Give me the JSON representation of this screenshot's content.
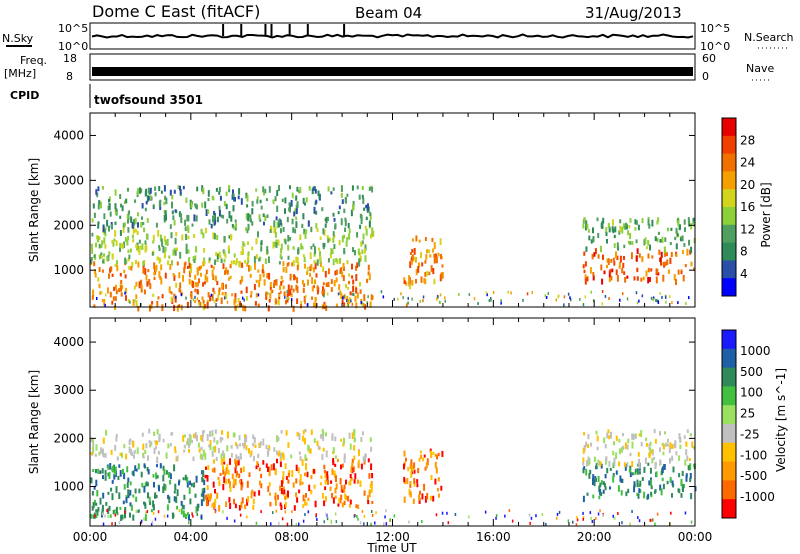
{
  "header": {
    "site": "Dome C East (fitACF)",
    "beam": "Beam 04",
    "date": "31/Aug/2013"
  },
  "panels": {
    "nsky_label": "N.Sky",
    "nsky_ticks": [
      "10^5",
      "10^0"
    ],
    "nsearch_label": "N.Search",
    "freq_label": "Freq.",
    "freq_unit": "[MHz]",
    "freq_ticks": [
      "18",
      "8"
    ],
    "nave_label": "Nave",
    "nave_ticks": [
      "60",
      "0"
    ],
    "cpid_label": "CPID",
    "cpid_value": "twofsound 3501"
  },
  "colors": {
    "power_scale": [
      "#0000ff",
      "#2a4fa8",
      "#2e8b57",
      "#4fa060",
      "#8dd03a",
      "#d2d51e",
      "#f5a000",
      "#f07000",
      "#f04000",
      "#e60000"
    ],
    "velocity_scale": [
      "#ff0000",
      "#ff6a00",
      "#ff9a00",
      "#ffc000",
      "#c0c0c0",
      "#9be060",
      "#42c040",
      "#2f8a5a",
      "#1f5fa5",
      "#1a1aff"
    ]
  },
  "chart_data": [
    {
      "type": "heatmap",
      "name": "Power",
      "ylabel": "Slant Range [km]",
      "ylim": [
        180,
        4500
      ],
      "yticks": [
        "1000",
        "2000",
        "3000",
        "4000"
      ],
      "xlim": [
        0,
        24
      ],
      "colorbar_label": "Power [dB]",
      "colorbar_ticks": [
        "4",
        "8",
        "12",
        "16",
        "20",
        "24",
        "28"
      ],
      "colorbar_range": [
        0,
        32
      ],
      "regions": [
        {
          "t0": 0.0,
          "t1": 11.2,
          "r0": 200,
          "r1": 1200,
          "value": 24
        },
        {
          "t0": 0.0,
          "t1": 11.2,
          "r0": 1200,
          "r1": 2000,
          "value": 14
        },
        {
          "t0": 0.0,
          "t1": 11.2,
          "r0": 2000,
          "r1": 2900,
          "value": 9
        },
        {
          "t0": 12.4,
          "t1": 14.0,
          "r0": 700,
          "r1": 1800,
          "value": 24
        },
        {
          "t0": 19.5,
          "t1": 24.0,
          "r0": 800,
          "r1": 1500,
          "value": 26
        },
        {
          "t0": 19.5,
          "t1": 24.0,
          "r0": 1500,
          "r1": 2200,
          "value": 11
        }
      ]
    },
    {
      "type": "heatmap",
      "name": "Velocity",
      "ylabel": "Slant Range [km]",
      "ylim": [
        180,
        4500
      ],
      "yticks": [
        "1000",
        "2000",
        "3000",
        "4000"
      ],
      "xlim": [
        0,
        24
      ],
      "xlabel": "Time UT",
      "xticks": [
        "00:00",
        "04:00",
        "08:00",
        "12:00",
        "16:00",
        "20:00",
        "00:00"
      ],
      "colorbar_label": "Velocity [m s^-1]",
      "colorbar_ticks": [
        "-1000",
        "-500",
        "-100",
        "-25",
        "25",
        "100",
        "500",
        "1000"
      ],
      "regions": [
        {
          "t0": 0.0,
          "t1": 4.5,
          "r0": 400,
          "r1": 1500,
          "value": 200
        },
        {
          "t0": 4.5,
          "t1": 11.2,
          "r0": 600,
          "r1": 1600,
          "value": -300
        },
        {
          "t0": 0.0,
          "t1": 11.2,
          "r0": 1600,
          "r1": 2200,
          "value": 0
        },
        {
          "t0": 12.4,
          "t1": 14.0,
          "r0": 700,
          "r1": 1800,
          "value": -200
        },
        {
          "t0": 19.5,
          "t1": 24.0,
          "r0": 800,
          "r1": 1500,
          "value": 200
        },
        {
          "t0": 19.5,
          "t1": 24.0,
          "r0": 1500,
          "r1": 2200,
          "value": 0
        }
      ]
    }
  ]
}
